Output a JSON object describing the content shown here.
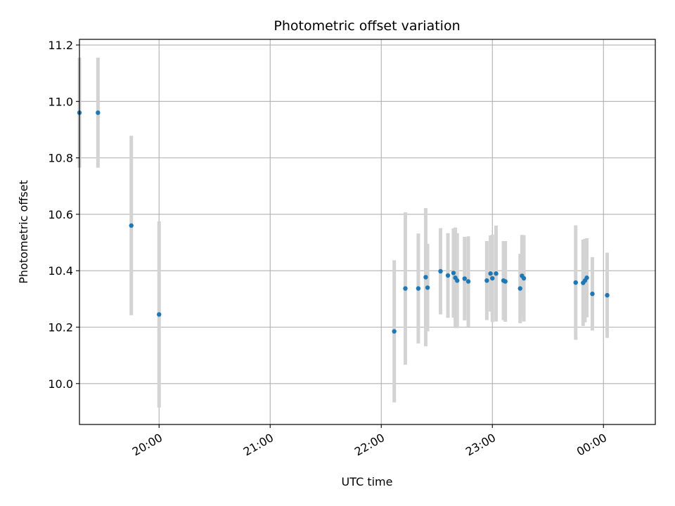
{
  "chart_data": {
    "type": "scatter",
    "title": "Photometric offset variation",
    "xlabel": "UTC time",
    "ylabel": "Photometric offset",
    "x_axis_type": "time",
    "x_ticks": [
      "20:00",
      "21:00",
      "22:00",
      "23:00",
      "00:00"
    ],
    "y_ticks": [
      "10.0",
      "10.2",
      "10.4",
      "10.6",
      "10.8",
      "11.0",
      "11.2"
    ],
    "xlim": [
      "19:17",
      "00:28"
    ],
    "ylim": [
      9.855,
      11.22
    ],
    "grid": true,
    "errorbar_color": "#d3d3d3",
    "marker_color": "#1f77b4",
    "series": [
      {
        "x": [
          "19:17",
          "19:27",
          "19:45",
          "20:00",
          "22:07",
          "22:13",
          "22:20",
          "22:24",
          "22:25",
          "22:32",
          "22:36",
          "22:39",
          "22:40",
          "22:41",
          "22:45",
          "22:47",
          "22:57",
          "22:59",
          "23:00",
          "23:02",
          "23:06",
          "23:07",
          "23:15",
          "23:16",
          "23:17",
          "23:45",
          "23:49",
          "23:50",
          "23:51",
          "23:54",
          "24:02"
        ],
        "y": [
          10.96,
          10.96,
          10.56,
          10.245,
          10.185,
          10.337,
          10.337,
          10.377,
          10.34,
          10.398,
          10.383,
          10.392,
          10.375,
          10.365,
          10.372,
          10.362,
          10.365,
          10.39,
          10.373,
          10.39,
          10.365,
          10.362,
          10.337,
          10.382,
          10.373,
          10.358,
          10.357,
          10.365,
          10.375,
          10.318,
          10.313
        ],
        "yerr": [
          0.195,
          0.195,
          0.318,
          0.33,
          0.252,
          0.27,
          0.195,
          0.245,
          0.155,
          0.153,
          0.15,
          0.158,
          0.178,
          0.168,
          0.148,
          0.16,
          0.14,
          0.135,
          0.155,
          0.17,
          0.14,
          0.143,
          0.123,
          0.145,
          0.153,
          0.203,
          0.153,
          0.148,
          0.14,
          0.13,
          0.151
        ]
      }
    ]
  }
}
